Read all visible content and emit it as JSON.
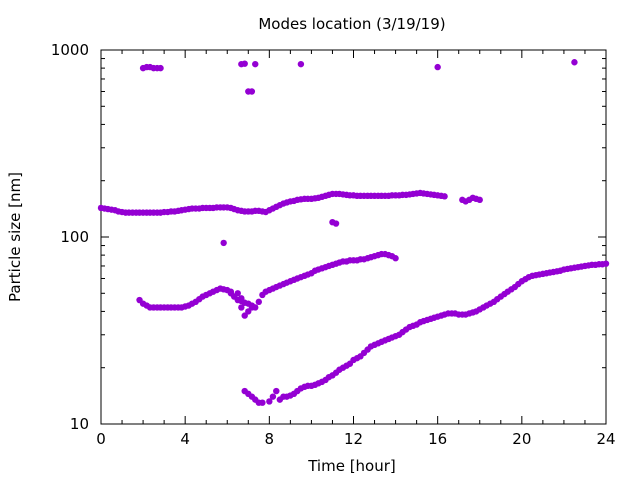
{
  "chart_data": {
    "type": "scatter",
    "title": "Modes location (3/19/19)",
    "xlabel": "Time [hour]",
    "ylabel": "Particle size [nm]",
    "xlim": [
      0,
      24
    ],
    "ylim": [
      10,
      1000
    ],
    "yscale": "log",
    "xticks": [
      "0",
      "4",
      "8",
      "12",
      "16",
      "20",
      "24"
    ],
    "yticks": [
      "10",
      "100",
      "1000"
    ],
    "grid": false,
    "legend": "none",
    "marker_color": "#9400d3",
    "series": [
      {
        "points": [
          [
            0.0,
            143
          ],
          [
            0.17,
            142
          ],
          [
            0.33,
            141
          ],
          [
            0.5,
            140
          ],
          [
            0.67,
            139
          ],
          [
            0.83,
            137
          ],
          [
            1.0,
            136
          ],
          [
            1.17,
            135
          ],
          [
            1.33,
            135
          ],
          [
            1.5,
            135
          ],
          [
            1.67,
            135
          ],
          [
            1.83,
            135
          ],
          [
            2.0,
            135
          ],
          [
            2.17,
            135
          ],
          [
            2.33,
            135
          ],
          [
            2.5,
            135
          ],
          [
            2.67,
            135
          ],
          [
            2.83,
            135
          ],
          [
            3.0,
            136
          ],
          [
            3.17,
            136
          ],
          [
            3.33,
            137
          ],
          [
            3.5,
            137
          ],
          [
            3.67,
            138
          ],
          [
            3.83,
            139
          ],
          [
            4.0,
            140
          ],
          [
            4.17,
            141
          ],
          [
            4.33,
            142
          ],
          [
            4.5,
            142
          ],
          [
            4.67,
            142
          ],
          [
            4.83,
            143
          ],
          [
            5.0,
            143
          ],
          [
            5.17,
            143
          ],
          [
            5.33,
            143
          ],
          [
            5.5,
            144
          ],
          [
            5.67,
            144
          ],
          [
            5.83,
            144
          ],
          [
            6.0,
            144
          ],
          [
            6.17,
            143
          ],
          [
            6.33,
            141
          ],
          [
            6.5,
            139
          ],
          [
            6.67,
            138
          ],
          [
            6.83,
            137
          ],
          [
            7.0,
            137
          ],
          [
            7.17,
            137
          ],
          [
            7.33,
            138
          ],
          [
            7.5,
            138
          ],
          [
            7.67,
            137
          ],
          [
            7.83,
            136
          ],
          [
            8.0,
            139
          ],
          [
            8.17,
            142
          ],
          [
            8.33,
            145
          ],
          [
            8.5,
            148
          ],
          [
            8.67,
            151
          ],
          [
            8.83,
            153
          ],
          [
            9.0,
            155
          ],
          [
            9.17,
            156
          ],
          [
            9.33,
            158
          ],
          [
            9.5,
            159
          ],
          [
            9.67,
            160
          ],
          [
            9.83,
            160
          ],
          [
            10.0,
            160
          ],
          [
            10.17,
            161
          ],
          [
            10.33,
            162
          ],
          [
            10.5,
            164
          ],
          [
            10.67,
            166
          ],
          [
            10.83,
            168
          ],
          [
            11.0,
            170
          ],
          [
            11.17,
            170
          ],
          [
            11.33,
            170
          ],
          [
            11.5,
            169
          ],
          [
            11.67,
            168
          ],
          [
            11.83,
            167
          ],
          [
            12.0,
            167
          ],
          [
            12.17,
            166
          ],
          [
            12.33,
            166
          ],
          [
            12.5,
            166
          ],
          [
            12.67,
            166
          ],
          [
            12.83,
            166
          ],
          [
            13.0,
            166
          ],
          [
            13.17,
            166
          ],
          [
            13.33,
            166
          ],
          [
            13.5,
            166
          ],
          [
            13.67,
            166
          ],
          [
            13.83,
            167
          ],
          [
            14.0,
            167
          ],
          [
            14.17,
            167
          ],
          [
            14.33,
            168
          ],
          [
            14.5,
            168
          ],
          [
            14.67,
            169
          ],
          [
            14.83,
            170
          ],
          [
            15.0,
            171
          ],
          [
            15.17,
            172
          ],
          [
            15.33,
            171
          ],
          [
            15.5,
            170
          ],
          [
            15.67,
            169
          ],
          [
            15.83,
            168
          ],
          [
            16.0,
            167
          ],
          [
            16.17,
            166
          ],
          [
            16.33,
            165
          ]
        ]
      },
      {
        "points": [
          [
            17.17,
            158
          ],
          [
            17.33,
            155
          ],
          [
            17.5,
            158
          ],
          [
            17.67,
            162
          ],
          [
            17.83,
            160
          ],
          [
            18.0,
            158
          ]
        ]
      },
      {
        "points": [
          [
            1.83,
            46
          ],
          [
            2.0,
            44
          ],
          [
            2.17,
            43
          ],
          [
            2.33,
            42
          ],
          [
            2.5,
            42
          ],
          [
            2.67,
            42
          ],
          [
            2.83,
            42
          ],
          [
            3.0,
            42
          ],
          [
            3.17,
            42
          ],
          [
            3.33,
            42
          ],
          [
            3.5,
            42
          ],
          [
            3.67,
            42
          ],
          [
            3.83,
            42
          ],
          [
            4.0,
            42.5
          ],
          [
            4.17,
            43
          ],
          [
            4.33,
            44
          ],
          [
            4.5,
            45
          ],
          [
            4.67,
            46.5
          ],
          [
            4.83,
            48
          ],
          [
            5.0,
            49
          ],
          [
            5.17,
            50
          ],
          [
            5.33,
            51
          ],
          [
            5.5,
            52
          ],
          [
            5.67,
            53
          ],
          [
            5.83,
            52.5
          ],
          [
            6.0,
            52
          ],
          [
            6.17,
            51
          ],
          [
            6.33,
            48
          ],
          [
            6.5,
            46
          ],
          [
            6.67,
            45.5
          ],
          [
            6.83,
            44.5
          ],
          [
            7.0,
            44
          ],
          [
            7.17,
            43
          ],
          [
            7.33,
            42
          ],
          [
            7.5,
            45
          ],
          [
            7.67,
            49
          ],
          [
            7.83,
            51
          ],
          [
            8.0,
            52
          ],
          [
            8.17,
            53
          ],
          [
            8.33,
            54
          ],
          [
            8.5,
            55
          ],
          [
            8.67,
            56
          ],
          [
            8.83,
            57
          ],
          [
            9.0,
            58
          ],
          [
            9.17,
            59
          ],
          [
            9.33,
            60
          ],
          [
            9.5,
            61
          ],
          [
            9.67,
            62
          ],
          [
            9.83,
            63
          ],
          [
            10.0,
            64
          ],
          [
            10.17,
            66
          ],
          [
            10.33,
            67
          ],
          [
            10.5,
            68
          ],
          [
            10.67,
            69
          ],
          [
            10.83,
            70
          ],
          [
            11.0,
            71
          ],
          [
            11.17,
            72
          ],
          [
            11.33,
            73
          ],
          [
            11.5,
            74
          ],
          [
            11.67,
            74
          ],
          [
            11.83,
            75
          ],
          [
            12.0,
            75
          ],
          [
            12.17,
            75
          ],
          [
            12.33,
            76
          ],
          [
            12.5,
            76
          ],
          [
            12.67,
            77
          ],
          [
            12.83,
            78
          ],
          [
            13.0,
            79
          ],
          [
            13.17,
            80
          ],
          [
            13.33,
            81
          ],
          [
            13.5,
            81
          ],
          [
            13.67,
            80
          ],
          [
            13.83,
            79
          ],
          [
            14.0,
            77
          ]
        ]
      },
      {
        "points": [
          [
            6.83,
            15
          ],
          [
            7.0,
            14.5
          ],
          [
            7.17,
            14
          ],
          [
            7.33,
            13.5
          ],
          [
            7.5,
            13
          ],
          [
            7.67,
            13
          ],
          [
            8.0,
            13.2
          ],
          [
            8.17,
            14
          ],
          [
            8.33,
            15
          ],
          [
            8.5,
            13.5
          ],
          [
            8.67,
            14
          ],
          [
            8.83,
            14
          ],
          [
            9.0,
            14.2
          ],
          [
            9.17,
            14.5
          ],
          [
            9.33,
            15
          ],
          [
            9.5,
            15.5
          ],
          [
            9.67,
            15.8
          ],
          [
            9.83,
            16
          ],
          [
            10.0,
            16
          ],
          [
            10.17,
            16.2
          ],
          [
            10.33,
            16.5
          ],
          [
            10.5,
            16.8
          ],
          [
            10.67,
            17.2
          ],
          [
            10.83,
            17.8
          ],
          [
            11.0,
            18.2
          ],
          [
            11.17,
            18.8
          ],
          [
            11.33,
            19.5
          ],
          [
            11.5,
            20
          ],
          [
            11.67,
            20.5
          ],
          [
            11.83,
            21
          ],
          [
            12.0,
            22
          ],
          [
            12.17,
            22.5
          ],
          [
            12.33,
            23
          ],
          [
            12.5,
            24
          ],
          [
            12.67,
            25
          ],
          [
            12.83,
            26
          ],
          [
            13.0,
            26.5
          ],
          [
            13.17,
            27
          ],
          [
            13.33,
            27.5
          ],
          [
            13.5,
            28
          ],
          [
            13.67,
            28.5
          ],
          [
            13.83,
            29
          ],
          [
            14.0,
            29.5
          ],
          [
            14.17,
            30
          ],
          [
            14.33,
            31
          ],
          [
            14.5,
            32
          ],
          [
            14.67,
            33
          ],
          [
            14.83,
            33.5
          ],
          [
            15.0,
            34
          ],
          [
            15.17,
            35
          ],
          [
            15.33,
            35.5
          ],
          [
            15.5,
            36
          ],
          [
            15.67,
            36.5
          ],
          [
            15.83,
            37
          ],
          [
            16.0,
            37.5
          ],
          [
            16.17,
            38
          ],
          [
            16.33,
            38.5
          ],
          [
            16.5,
            39
          ],
          [
            16.67,
            39
          ],
          [
            16.83,
            39
          ],
          [
            17.0,
            38.5
          ],
          [
            17.17,
            38.5
          ],
          [
            17.33,
            38.5
          ],
          [
            17.5,
            39
          ],
          [
            17.67,
            39.5
          ],
          [
            17.83,
            40
          ],
          [
            18.0,
            41
          ],
          [
            18.17,
            42
          ],
          [
            18.33,
            43
          ],
          [
            18.5,
            44
          ],
          [
            18.67,
            45
          ],
          [
            18.83,
            46.5
          ],
          [
            19.0,
            48
          ],
          [
            19.17,
            49.5
          ],
          [
            19.33,
            51
          ],
          [
            19.5,
            52.5
          ],
          [
            19.67,
            54
          ],
          [
            19.83,
            56
          ],
          [
            20.0,
            58
          ],
          [
            20.17,
            59.5
          ],
          [
            20.33,
            61
          ],
          [
            20.5,
            62
          ],
          [
            20.67,
            62.5
          ],
          [
            20.83,
            63
          ],
          [
            21.0,
            63.5
          ],
          [
            21.17,
            64
          ],
          [
            21.33,
            64.5
          ],
          [
            21.5,
            65
          ],
          [
            21.67,
            65.5
          ],
          [
            21.83,
            66
          ],
          [
            22.0,
            67
          ],
          [
            22.17,
            67.5
          ],
          [
            22.33,
            68
          ],
          [
            22.5,
            68.5
          ],
          [
            22.67,
            69
          ],
          [
            22.83,
            69.5
          ],
          [
            23.0,
            70
          ],
          [
            23.17,
            70.5
          ],
          [
            23.33,
            71
          ],
          [
            23.5,
            71
          ],
          [
            23.67,
            71.5
          ],
          [
            23.83,
            71.5
          ],
          [
            24.0,
            72
          ]
        ]
      },
      {
        "points": [
          [
            2.0,
            800
          ],
          [
            2.17,
            810
          ],
          [
            2.33,
            810
          ],
          [
            2.5,
            800
          ],
          [
            2.67,
            800
          ],
          [
            2.83,
            800
          ],
          [
            6.67,
            840
          ],
          [
            6.83,
            845
          ],
          [
            7.33,
            840
          ],
          [
            7.17,
            600
          ],
          [
            7.0,
            600
          ],
          [
            9.5,
            840
          ],
          [
            16.0,
            810
          ],
          [
            22.5,
            860
          ],
          [
            5.83,
            93
          ],
          [
            11.0,
            120
          ],
          [
            11.17,
            118
          ],
          [
            6.17,
            50
          ],
          [
            6.5,
            50
          ],
          [
            6.67,
            47
          ],
          [
            6.83,
            38
          ],
          [
            6.67,
            42
          ],
          [
            7.0,
            40
          ],
          [
            7.17,
            42
          ]
        ]
      }
    ]
  }
}
